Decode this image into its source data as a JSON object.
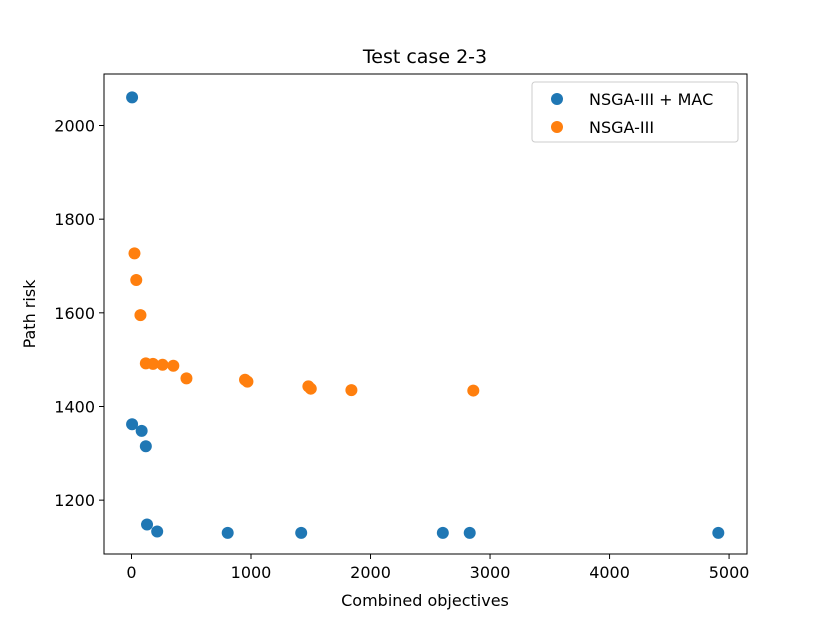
{
  "chart_data": {
    "type": "scatter",
    "title": "Test case 2-3",
    "xlabel": "Combined objectives",
    "ylabel": "Path risk",
    "xlim": [
      -230,
      5150
    ],
    "ylim": [
      1085,
      2110
    ],
    "xticks": [
      0,
      1000,
      2000,
      3000,
      4000,
      5000
    ],
    "yticks": [
      1200,
      1400,
      1600,
      1800,
      2000
    ],
    "grid": false,
    "legend_position": "top-right",
    "series": [
      {
        "name": "NSGA-III + MAC",
        "color": "#1f77b4",
        "points": [
          [
            5,
            2060
          ],
          [
            5,
            1362
          ],
          [
            85,
            1348
          ],
          [
            120,
            1315
          ],
          [
            130,
            1148
          ],
          [
            215,
            1133
          ],
          [
            805,
            1130
          ],
          [
            1420,
            1130
          ],
          [
            2605,
            1130
          ],
          [
            2830,
            1130
          ],
          [
            4910,
            1130
          ]
        ]
      },
      {
        "name": "NSGA-III",
        "color": "#ff7f0e",
        "points": [
          [
            25,
            1727
          ],
          [
            40,
            1670
          ],
          [
            75,
            1595
          ],
          [
            120,
            1492
          ],
          [
            180,
            1491
          ],
          [
            260,
            1489
          ],
          [
            350,
            1487
          ],
          [
            460,
            1460
          ],
          [
            950,
            1457
          ],
          [
            970,
            1453
          ],
          [
            1480,
            1443
          ],
          [
            1500,
            1438
          ],
          [
            1840,
            1435
          ],
          [
            2860,
            1434
          ]
        ]
      }
    ]
  }
}
